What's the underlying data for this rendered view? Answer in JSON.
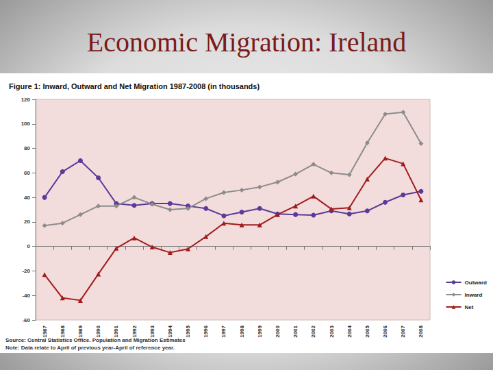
{
  "page_title": "Economic Migration: Ireland",
  "chart_data": {
    "type": "line",
    "title": "Figure 1: Inward, Outward and Net Migration 1987-2008 (in thousands)",
    "annotations": [
      "Source: Central Statistics Office. Population and Migration Estimates",
      "Note: Data relate to April of previous year-April of reference year."
    ],
    "categories": [
      "1987",
      "1988",
      "1989",
      "1990",
      "1991",
      "1992",
      "1993",
      "1994",
      "1995",
      "1996",
      "1997",
      "1998",
      "1999",
      "2000",
      "2001",
      "2002",
      "2003",
      "2004",
      "2005",
      "2006",
      "2007",
      "2008"
    ],
    "series": [
      {
        "name": "Outward",
        "color": "#5a3a9a",
        "marker": "circle",
        "values": [
          40,
          61,
          70,
          56,
          35,
          33.5,
          35,
          35,
          33,
          31,
          25,
          28,
          31,
          26.5,
          26,
          25.5,
          29,
          26.5,
          29,
          36,
          42,
          45
        ]
      },
      {
        "name": "Inward",
        "color": "#8c8c8c",
        "marker": "diamond",
        "values": [
          17,
          19,
          26,
          33,
          33,
          40,
          34.5,
          30,
          31,
          39,
          44,
          46,
          48.5,
          52.5,
          59,
          67,
          60,
          58.5,
          84.5,
          108,
          109.5,
          84
        ]
      },
      {
        "name": "Net",
        "color": "#a01c1c",
        "marker": "triangle",
        "values": [
          -23,
          -42,
          -44,
          -22.5,
          -1.5,
          7,
          -0.5,
          -5,
          -2,
          8,
          19,
          17.5,
          17.5,
          26,
          33,
          41,
          30.5,
          31.5,
          55,
          72,
          67.5,
          38
        ]
      }
    ],
    "ylim": [
      -60,
      120
    ],
    "yticks": [
      -60,
      -40,
      -20,
      0,
      20,
      40,
      60,
      80,
      100,
      120
    ],
    "grid": false,
    "legend": "right"
  }
}
